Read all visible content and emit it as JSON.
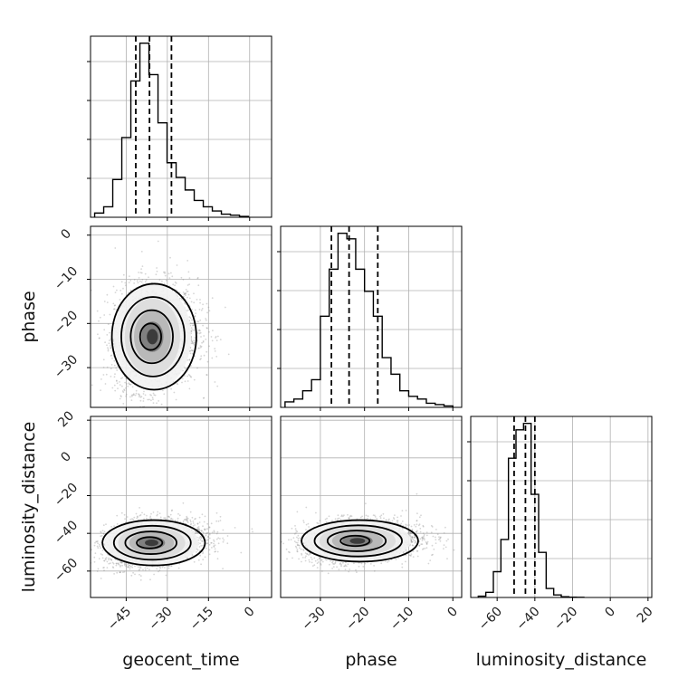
{
  "chart_data": {
    "type": "corner",
    "parameters": [
      "geocent_time",
      "phase",
      "luminosity_distance"
    ],
    "axis_labels": {
      "geocent_time": "geocent_time",
      "phase": "phase",
      "luminosity_distance": "luminosity_distance"
    },
    "ranges": {
      "geocent_time": [
        -58,
        8
      ],
      "phase": [
        -39,
        2
      ],
      "luminosity_distance": [
        -74,
        22
      ]
    },
    "ticks": {
      "geocent_time": [
        -45,
        -30,
        -15,
        0
      ],
      "phase": [
        -30,
        -20,
        -10,
        0
      ],
      "luminosity_distance": [
        -60,
        -40,
        -20,
        0,
        20
      ]
    },
    "tick_labels": {
      "geocent_time": [
        "−45",
        "−30",
        "−15",
        "0"
      ],
      "phase": [
        "−30",
        "−20",
        "−10",
        "0"
      ],
      "luminosity_distance": [
        "−60",
        "−40",
        "−20",
        "0",
        "20"
      ]
    },
    "quantiles": {
      "geocent_time": [
        -41.5,
        -36.5,
        -28.5
      ],
      "phase": [
        -27.5,
        -23.5,
        -17
      ],
      "luminosity_distance": [
        -51,
        -45,
        -40
      ]
    },
    "histograms": {
      "geocent_time": {
        "edges": [
          -56.5,
          -53.2,
          -49.9,
          -46.6,
          -43.3,
          -40,
          -36.7,
          -33.4,
          -30.1,
          -26.8,
          -23.5,
          -20.2,
          -16.9,
          -13.6,
          -10.3,
          -7,
          -3.7,
          -0.4
        ],
        "counts": [
          2,
          5,
          18,
          38,
          65,
          83,
          68,
          45,
          26,
          19,
          13,
          8,
          5,
          3,
          1.5,
          1,
          0.4
        ]
      },
      "phase": {
        "edges": [
          -38,
          -36,
          -34,
          -32,
          -30,
          -28,
          -26,
          -24,
          -22,
          -20,
          -18,
          -16,
          -14,
          -12,
          -10,
          -8,
          -6,
          -4,
          -2,
          0
        ],
        "counts": [
          2,
          3,
          6,
          10,
          33,
          50,
          63,
          61,
          50,
          42,
          33,
          18,
          12,
          6,
          4,
          3,
          1.5,
          1,
          0.5
        ]
      },
      "luminosity_distance": {
        "edges": [
          -70,
          -66,
          -62,
          -58,
          -54,
          -50,
          -46,
          -42,
          -38,
          -34,
          -30,
          -26,
          -22,
          -18,
          -14
        ],
        "counts": [
          1,
          4,
          20,
          45,
          108,
          130,
          135,
          80,
          35,
          7,
          2,
          0.6,
          0.2,
          0.1
        ]
      }
    },
    "pairs": [
      {
        "x": "geocent_time",
        "y": "phase",
        "mean": [
          -36.5,
          -23
        ],
        "sd": [
          7,
          6
        ],
        "corr": 0.1
      },
      {
        "x": "geocent_time",
        "y": "luminosity_distance",
        "mean": [
          -37,
          -45
        ],
        "sd": [
          8.5,
          6
        ],
        "corr": 0.25
      },
      {
        "x": "phase",
        "y": "luminosity_distance",
        "mean": [
          -22.5,
          -44
        ],
        "sd": [
          6,
          5.5
        ],
        "corr": 0.15
      }
    ],
    "contour_sigmas": [
      0.5,
      1.0,
      1.5,
      2.0
    ],
    "histogram_line_color": "#000000",
    "quantile_line_style": "dashed",
    "grid": true,
    "grid_color": "#b0b0b0",
    "scatter_color": "#8a8a8a"
  }
}
